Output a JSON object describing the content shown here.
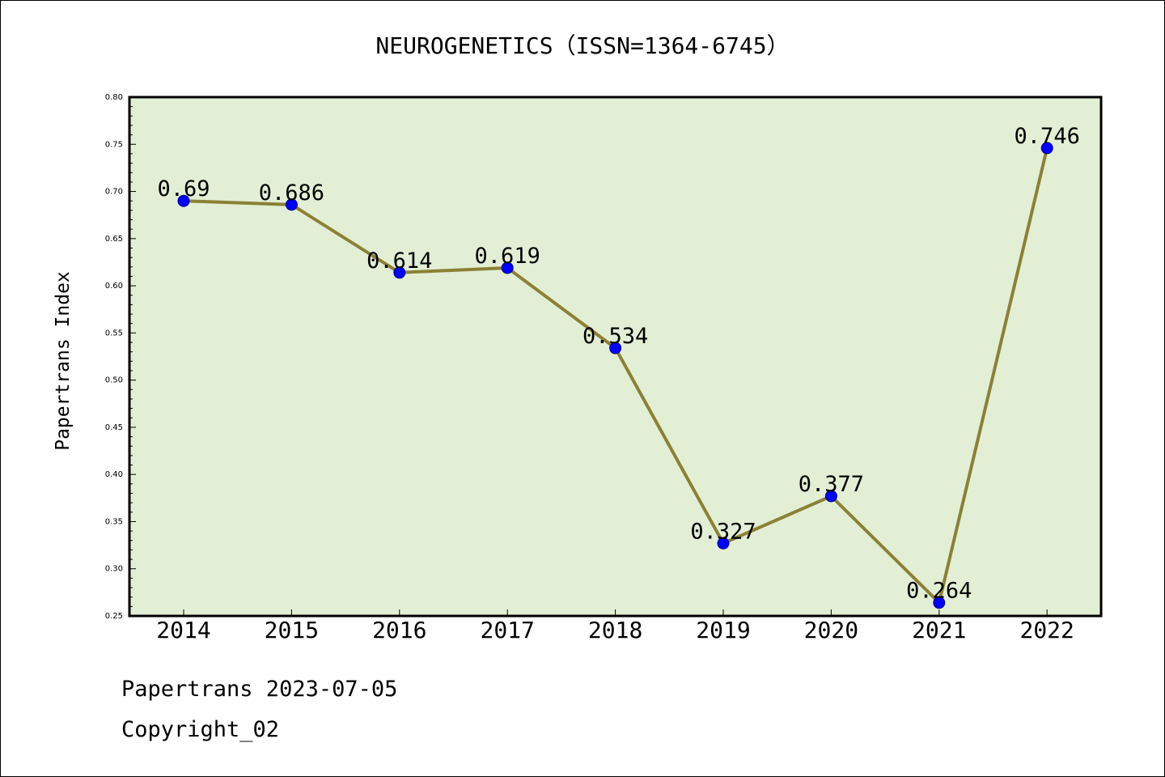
{
  "chart_data": {
    "type": "line",
    "title": "NEUROGENETICS（ISSN=1364-6745）",
    "ylabel": "Papertrans Index",
    "xlabel": "",
    "categories": [
      "2014",
      "2015",
      "2016",
      "2017",
      "2018",
      "2019",
      "2020",
      "2021",
      "2022"
    ],
    "values": [
      0.69,
      0.686,
      0.614,
      0.619,
      0.534,
      0.327,
      0.377,
      0.264,
      0.746
    ],
    "data_labels": [
      "0.69",
      "0.686",
      "0.614",
      "0.619",
      "0.534",
      "0.327",
      "0.377",
      "0.264",
      "0.746"
    ],
    "ylim": [
      0.25,
      0.8
    ],
    "yticks": [
      "0.25",
      "0.30",
      "0.35",
      "0.40",
      "0.45",
      "0.50",
      "0.55",
      "0.60",
      "0.65",
      "0.70",
      "0.75",
      "0.80"
    ],
    "grid": false,
    "legend": "none",
    "colors": {
      "plot_background": "#e2efd5",
      "line": "#8b8035",
      "marker": "#0000ff",
      "marker_edge": "#000080"
    }
  },
  "footer": {
    "line1": "Papertrans 2023-07-05",
    "line2": "Copyright_02"
  }
}
